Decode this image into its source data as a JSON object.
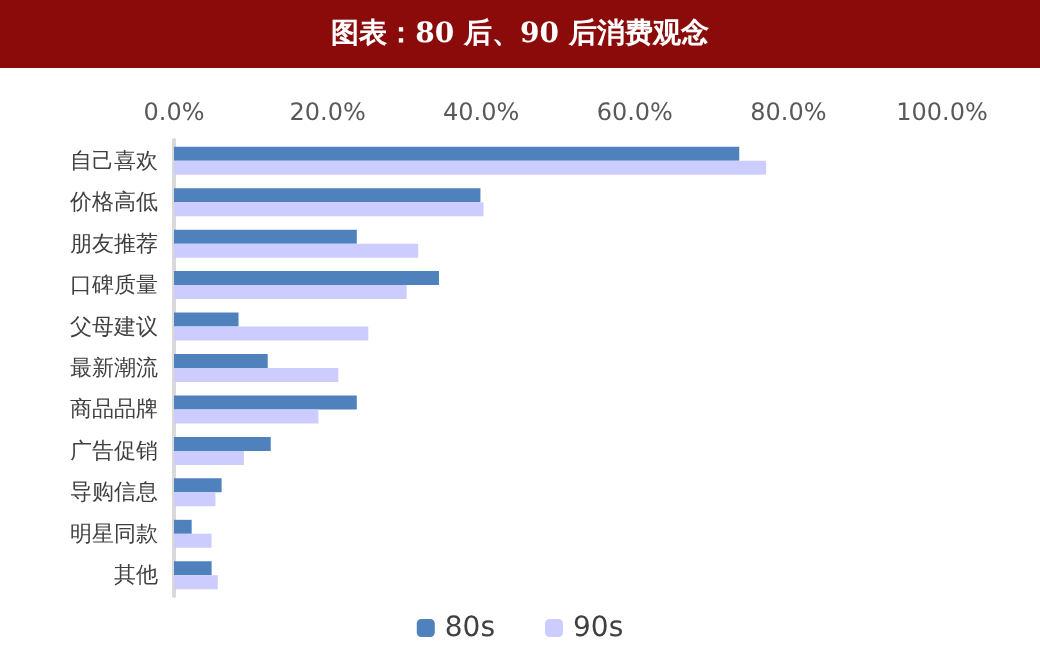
{
  "chart_data": {
    "type": "bar",
    "orientation": "horizontal",
    "title": "图表：80 后、90 后消费观念",
    "categories": [
      "自己喜欢",
      "价格高低",
      "朋友推荐",
      "口碑质量",
      "父母建议",
      "最新潮流",
      "商品品牌",
      "广告促销",
      "导购信息",
      "明星同款",
      "其他"
    ],
    "series": [
      {
        "name": "80s",
        "color": "#4f81bd",
        "values": [
          73.6,
          39.9,
          23.8,
          34.5,
          8.4,
          12.2,
          23.8,
          12.6,
          6.2,
          2.3,
          4.9
        ]
      },
      {
        "name": "90s",
        "color": "#ccccff",
        "values": [
          77.1,
          40.3,
          31.8,
          30.3,
          25.3,
          21.4,
          18.8,
          9.1,
          5.4,
          4.9,
          5.7
        ]
      }
    ],
    "xlim": [
      0,
      100
    ],
    "xticks": [
      {
        "value": 0,
        "label": "0.0%"
      },
      {
        "value": 20,
        "label": "20.0%"
      },
      {
        "value": 40,
        "label": "40.0%"
      },
      {
        "value": 60,
        "label": "60.0%"
      },
      {
        "value": 80,
        "label": "80.0%"
      },
      {
        "value": 100,
        "label": "100.0%"
      }
    ],
    "grid": false,
    "legend": "bottom"
  }
}
